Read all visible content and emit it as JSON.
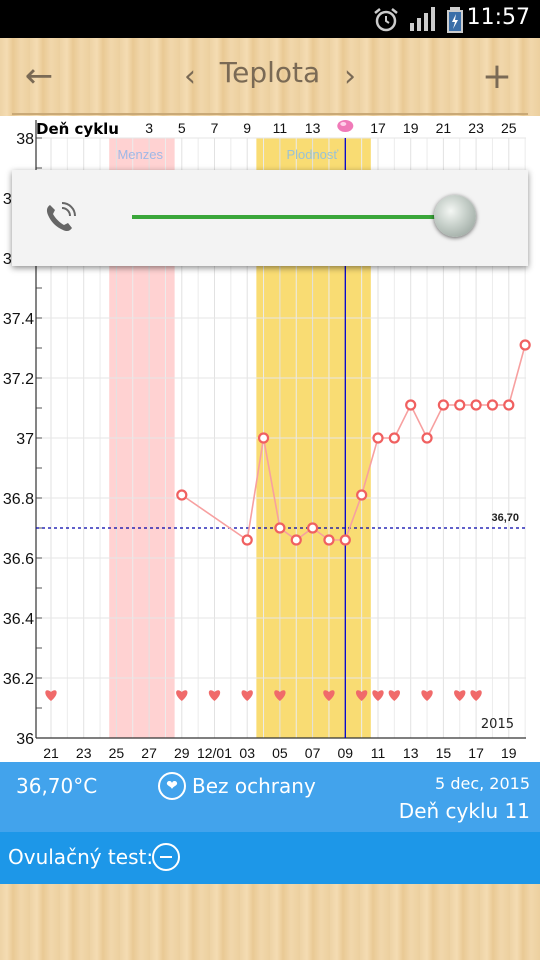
{
  "status": {
    "time": "11:57"
  },
  "appbar": {
    "title": "Teplota",
    "back": "←",
    "prev": "‹",
    "next": "›",
    "add": "+"
  },
  "chart_data": {
    "type": "line",
    "top_axis_title": "Deň cyklu",
    "top_axis_labels": [
      "3",
      "5",
      "7",
      "9",
      "11",
      "13",
      "",
      "17",
      "19",
      "21",
      "23",
      "25"
    ],
    "bottom_axis_labels": [
      "21",
      "23",
      "25",
      "27",
      "29",
      "12/01",
      "03",
      "05",
      "07",
      "09",
      "11",
      "13",
      "15",
      "17",
      "19"
    ],
    "y_ticks": [
      "36",
      "36.2",
      "36.4",
      "36.6",
      "36.8",
      "37",
      "37.2",
      "37.4",
      "37.6",
      "37.8",
      "38"
    ],
    "ylim": [
      36,
      38
    ],
    "band_labels": {
      "menses": "Menzes",
      "fertile": "Plodnosť"
    },
    "days": [
      0,
      1,
      2,
      3,
      4,
      5,
      6,
      7,
      8,
      9,
      10,
      11,
      12,
      13,
      14,
      15,
      16,
      17,
      18,
      19,
      20,
      21,
      22,
      23,
      24,
      25,
      26,
      27,
      28,
      29,
      30
    ],
    "menses_days": [
      4,
      7
    ],
    "fertile_days": [
      13,
      19
    ],
    "current_day": 18,
    "temperatures": [
      {
        "day": 8,
        "temp": 36.81
      },
      {
        "day": 12,
        "temp": 36.66
      },
      {
        "day": 13,
        "temp": 37.0
      },
      {
        "day": 14,
        "temp": 36.7
      },
      {
        "day": 15,
        "temp": 36.66
      },
      {
        "day": 16,
        "temp": 36.7
      },
      {
        "day": 17,
        "temp": 36.66
      },
      {
        "day": 18,
        "temp": 36.66
      },
      {
        "day": 19,
        "temp": 36.81
      },
      {
        "day": 20,
        "temp": 37.0
      },
      {
        "day": 21,
        "temp": 37.0
      },
      {
        "day": 22,
        "temp": 37.11
      },
      {
        "day": 23,
        "temp": 37.0
      },
      {
        "day": 24,
        "temp": 37.11
      },
      {
        "day": 25,
        "temp": 37.11
      },
      {
        "day": 26,
        "temp": 37.11
      },
      {
        "day": 27,
        "temp": 37.11
      },
      {
        "day": 28,
        "temp": 37.11
      },
      {
        "day": 29,
        "temp": 37.31
      }
    ],
    "coverline": {
      "value": 36.7,
      "label": "36,70"
    },
    "intercourse_days": [
      0,
      8,
      10,
      12,
      14,
      17,
      19,
      20,
      21,
      23,
      25,
      26
    ],
    "year_label": "2015",
    "colors": {
      "line": "#f7a0a0",
      "point": "#f06060",
      "menses": "#ffd2d2",
      "fertile": "#f9dc73",
      "coverline": "#0000aa",
      "current": "#0000cc",
      "heart": "#f06a6a"
    }
  },
  "volume": {
    "level": 0.96
  },
  "info": {
    "temperature": "36,70°C",
    "protection_icon": "heart-icon",
    "protection_label": "Bez ochrany",
    "date": "5 dec, 2015",
    "cycle_day": "Deň cyklu 11"
  },
  "ovulation": {
    "label": "Ovulačný test:",
    "icon": "minus-circle-icon"
  }
}
